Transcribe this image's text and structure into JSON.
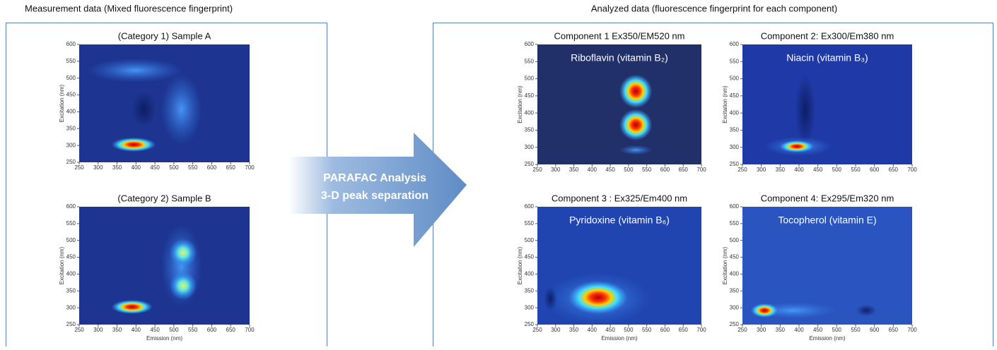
{
  "left_panel": {
    "header": "Measurement data (Mixed fluorescence fingerprint)",
    "plots": [
      {
        "title": "(Category 1) Sample A",
        "ylabel": "Excitation (nm)",
        "xticks": [
          250,
          300,
          350,
          400,
          450,
          500,
          550,
          600,
          650,
          700
        ],
        "yticks": [
          250,
          300,
          350,
          400,
          450,
          500,
          550,
          600
        ]
      },
      {
        "title": "(Category 2) Sample B",
        "ylabel": "Excitation (nm)",
        "xlabel": "Emission (nm)",
        "xticks": [
          250,
          300,
          350,
          400,
          450,
          500,
          550,
          600,
          650,
          700
        ],
        "yticks": [
          250,
          300,
          350,
          400,
          450,
          500,
          550,
          600
        ]
      }
    ]
  },
  "arrow": {
    "lines": [
      "PARAFAC Analysis",
      "3-D peak separation"
    ]
  },
  "right_panel": {
    "header": "Analyzed data (fluorescence fingerprint for each component)",
    "plots": [
      {
        "title": "Component 1 Ex350/EM520 nm",
        "label": "Riboflavin (vitamin B₂)",
        "ylabel": "Excitation (nm)",
        "xticks": [
          250,
          300,
          350,
          400,
          450,
          500,
          550,
          600,
          650,
          700
        ],
        "yticks": [
          250,
          300,
          350,
          400,
          450,
          500,
          550,
          600
        ]
      },
      {
        "title": "Component 2: Ex300/Em380 nm",
        "label": "Niacin (vitamin B₃)",
        "ylabel": "Excitation (nm)",
        "xticks": [
          250,
          300,
          350,
          400,
          450,
          500,
          550,
          600,
          650,
          700
        ],
        "yticks": [
          250,
          300,
          350,
          400,
          450,
          500,
          550,
          600
        ]
      },
      {
        "title": "Component 3 : Ex325/Em400 nm",
        "label": "Pyridoxine (vitamin B₆)",
        "ylabel": "Excitation (nm)",
        "xlabel": "Emission (nm)",
        "xticks": [
          250,
          300,
          350,
          400,
          450,
          500,
          550,
          600,
          650,
          700
        ],
        "yticks": [
          250,
          300,
          350,
          400,
          450,
          500,
          550,
          600
        ]
      },
      {
        "title": "Component 4: Ex295/Em320 nm",
        "label": "Tocopherol (vitamin E)",
        "ylabel": "Excitation (nm)",
        "xlabel": "Emission (nm)",
        "xticks": [
          250,
          300,
          350,
          400,
          450,
          500,
          550,
          600,
          650,
          700
        ],
        "yticks": [
          250,
          300,
          350,
          400,
          450,
          500,
          550,
          600
        ]
      }
    ]
  }
}
